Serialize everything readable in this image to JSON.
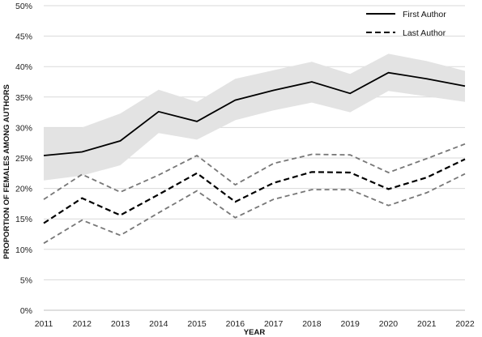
{
  "chart_data": {
    "type": "line",
    "title": "",
    "xlabel": "YEAR",
    "ylabel": "PROPORTION OF FEMALES AMONG AUTHORS",
    "x": [
      2011,
      2012,
      2013,
      2014,
      2015,
      2016,
      2017,
      2018,
      2019,
      2020,
      2021,
      2022
    ],
    "ylim": [
      0,
      50
    ],
    "yticks": [
      "0%",
      "5%",
      "10%",
      "15%",
      "20%",
      "25%",
      "30%",
      "35%",
      "40%",
      "45%",
      "50%"
    ],
    "ytick_values": [
      0,
      5,
      10,
      15,
      20,
      25,
      30,
      35,
      40,
      45,
      50
    ],
    "grid": "horizontal",
    "legend_position": "top-right",
    "series": [
      {
        "name": "First Author",
        "style": "solid",
        "color": "#000000",
        "values": [
          25.4,
          26.0,
          27.8,
          32.6,
          31.0,
          34.5,
          36.1,
          37.5,
          35.6,
          39.0,
          38.0,
          36.8
        ],
        "ci_lower": [
          21.3,
          22.1,
          23.8,
          29.1,
          28.0,
          31.2,
          32.8,
          34.1,
          32.5,
          36.0,
          35.1,
          34.2
        ],
        "ci_upper": [
          30.0,
          30.0,
          32.3,
          36.2,
          34.2,
          38.0,
          39.4,
          40.8,
          38.8,
          42.1,
          40.9,
          39.3
        ],
        "ci_color": "#e3e3e3"
      },
      {
        "name": "Last Author",
        "style": "dashed",
        "color": "#000000",
        "values": [
          14.3,
          18.4,
          15.6,
          19.0,
          22.5,
          17.8,
          20.9,
          22.7,
          22.6,
          19.9,
          21.8,
          24.8
        ],
        "ci_lower": [
          11.0,
          14.8,
          12.3,
          16.0,
          19.6,
          15.2,
          18.2,
          19.8,
          19.8,
          17.2,
          19.3,
          22.4
        ],
        "ci_upper": [
          18.2,
          22.3,
          19.4,
          22.2,
          25.4,
          20.6,
          24.1,
          25.6,
          25.5,
          22.6,
          24.9,
          27.3
        ],
        "ci_color": "#777777"
      }
    ]
  }
}
